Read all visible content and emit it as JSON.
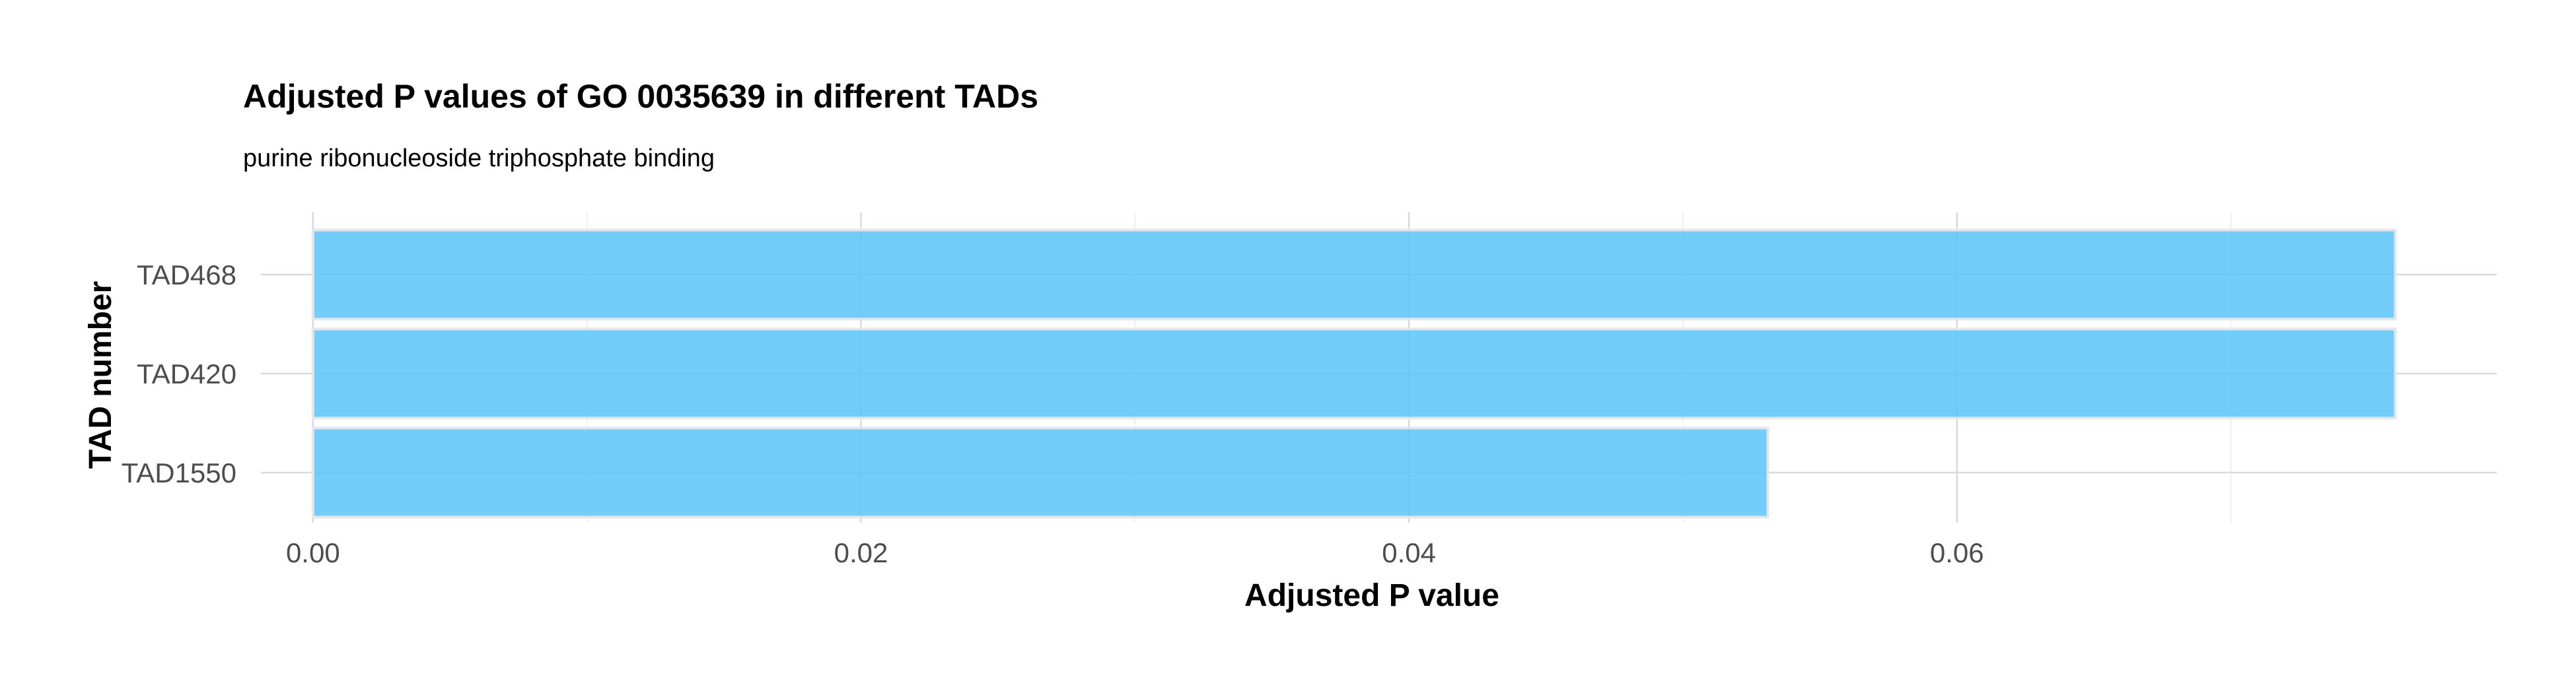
{
  "chart_data": {
    "type": "bar",
    "orientation": "horizontal",
    "title": "Adjusted P values of GO 0035639 in different TADs",
    "subtitle": "purine ribonucleoside triphosphate binding",
    "xlabel": "Adjusted P value",
    "ylabel": "TAD number",
    "categories": [
      "TAD468",
      "TAD420",
      "TAD1550"
    ],
    "values": [
      0.076,
      0.076,
      0.0531
    ],
    "xlim": [
      -0.0019,
      0.0797
    ],
    "xticks": [
      0.0,
      0.02,
      0.04,
      0.06
    ],
    "xtick_labels": [
      "0.00",
      "0.02",
      "0.04",
      "0.06"
    ],
    "grid": true,
    "bar_color": "#5bc4fa"
  }
}
